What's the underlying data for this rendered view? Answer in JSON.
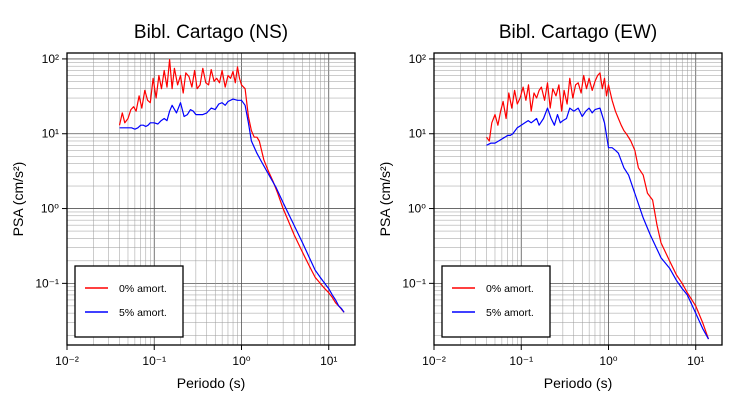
{
  "chart_data": [
    {
      "type": "line",
      "title": "Bibl. Cartago (NS)",
      "xlabel": "Periodo (s)",
      "ylabel": "PSA (cm/s²)",
      "xscale": "log",
      "yscale": "log",
      "xlim": [
        0.01,
        20
      ],
      "ylim": [
        0.015,
        120
      ],
      "xticks": [
        "10⁻²",
        "10⁻¹",
        "10⁰",
        "10¹"
      ],
      "xtick_values": [
        0.01,
        0.1,
        1,
        10
      ],
      "yticks": [
        "10⁻¹",
        "10⁰",
        "10¹",
        "10²"
      ],
      "ytick_values": [
        0.1,
        1,
        10,
        100
      ],
      "grid": true,
      "legend_position": "bottom-left",
      "series": [
        {
          "name": "0% amort.",
          "color": "#ff0000",
          "x": [
            0.04,
            0.043,
            0.046,
            0.05,
            0.054,
            0.058,
            0.062,
            0.067,
            0.072,
            0.078,
            0.084,
            0.09,
            0.097,
            0.105,
            0.113,
            0.121,
            0.13,
            0.14,
            0.15,
            0.16,
            0.17,
            0.185,
            0.2,
            0.215,
            0.23,
            0.25,
            0.27,
            0.29,
            0.31,
            0.335,
            0.36,
            0.39,
            0.42,
            0.45,
            0.485,
            0.52,
            0.56,
            0.6,
            0.65,
            0.7,
            0.75,
            0.8,
            0.85,
            0.9,
            0.95,
            1.0,
            1.1,
            1.2,
            1.3,
            1.4,
            1.5,
            1.6,
            1.8,
            2.0,
            2.3,
            2.6,
            3.0,
            3.5,
            4.0,
            5.0,
            6.0,
            7.0,
            8.0,
            9.0,
            10.0,
            11.0,
            12.0,
            13.0,
            14.0,
            15.0
          ],
          "y": [
            13,
            19,
            14,
            16,
            21,
            23,
            20,
            32,
            22,
            38,
            28,
            26,
            55,
            30,
            60,
            40,
            70,
            42,
            98,
            40,
            75,
            45,
            60,
            35,
            65,
            58,
            42,
            70,
            40,
            45,
            75,
            48,
            45,
            72,
            50,
            55,
            48,
            70,
            42,
            60,
            55,
            68,
            48,
            78,
            55,
            45,
            40,
            17,
            11,
            9,
            9,
            8,
            4.5,
            3.3,
            2.3,
            1.6,
            1.0,
            0.65,
            0.45,
            0.26,
            0.17,
            0.12,
            0.1,
            0.085,
            0.075,
            0.065,
            0.055,
            0.05,
            0.045,
            0.041
          ]
        },
        {
          "name": "5% amort.",
          "color": "#0000ff",
          "x": [
            0.04,
            0.045,
            0.05,
            0.055,
            0.06,
            0.065,
            0.07,
            0.075,
            0.08,
            0.085,
            0.09,
            0.1,
            0.11,
            0.12,
            0.13,
            0.14,
            0.15,
            0.16,
            0.18,
            0.2,
            0.22,
            0.24,
            0.26,
            0.28,
            0.3,
            0.33,
            0.36,
            0.4,
            0.45,
            0.5,
            0.55,
            0.6,
            0.65,
            0.7,
            0.8,
            0.9,
            1.0,
            1.1,
            1.2,
            1.3,
            1.5,
            1.7,
            2.0,
            2.5,
            3.0,
            4.0,
            5.0,
            6.0,
            7.0,
            8.0,
            9.0,
            10.0,
            11.0,
            12.0,
            13.0,
            14.0,
            15.0
          ],
          "y": [
            12,
            12,
            12,
            12,
            11.5,
            12,
            13,
            13,
            12.5,
            13,
            14,
            14,
            13.5,
            15,
            16,
            15,
            20,
            24,
            19,
            26,
            17,
            18,
            21,
            20,
            18,
            18,
            18,
            19,
            22,
            21,
            25,
            26,
            24,
            27,
            29,
            28,
            28,
            24,
            14,
            8,
            5.5,
            4.2,
            3.0,
            1.9,
            1.2,
            0.6,
            0.35,
            0.22,
            0.15,
            0.12,
            0.1,
            0.085,
            0.07,
            0.06,
            0.05,
            0.046,
            0.041
          ]
        }
      ]
    },
    {
      "type": "line",
      "title": "Bibl. Cartago (EW)",
      "xlabel": "Periodo (s)",
      "ylabel": "PSA (cm/s²)",
      "xscale": "log",
      "yscale": "log",
      "xlim": [
        0.01,
        20
      ],
      "ylim": [
        0.015,
        120
      ],
      "xticks": [
        "10⁻²",
        "10⁻¹",
        "10⁰",
        "10¹"
      ],
      "xtick_values": [
        0.01,
        0.1,
        1,
        10
      ],
      "yticks": [
        "10⁻¹",
        "10⁰",
        "10¹",
        "10²"
      ],
      "ytick_values": [
        0.1,
        1,
        10,
        100
      ],
      "grid": true,
      "legend_position": "bottom-left",
      "series": [
        {
          "name": "0% amort.",
          "color": "#ff0000",
          "x": [
            0.04,
            0.043,
            0.046,
            0.05,
            0.054,
            0.058,
            0.062,
            0.067,
            0.072,
            0.078,
            0.084,
            0.09,
            0.097,
            0.105,
            0.113,
            0.121,
            0.13,
            0.14,
            0.15,
            0.16,
            0.17,
            0.185,
            0.2,
            0.215,
            0.23,
            0.25,
            0.27,
            0.29,
            0.31,
            0.335,
            0.36,
            0.39,
            0.42,
            0.45,
            0.485,
            0.52,
            0.56,
            0.6,
            0.65,
            0.7,
            0.75,
            0.8,
            0.85,
            0.9,
            0.95,
            1.0,
            1.1,
            1.2,
            1.3,
            1.4,
            1.5,
            1.6,
            1.8,
            2.0,
            2.2,
            2.5,
            2.8,
            3.2,
            3.6,
            4.0,
            5.0,
            6.0,
            7.0,
            8.0,
            10.0,
            12.0,
            14.0
          ],
          "y": [
            9,
            8,
            14,
            18,
            13,
            20,
            27,
            16,
            35,
            22,
            38,
            25,
            30,
            42,
            28,
            45,
            20,
            35,
            30,
            38,
            42,
            28,
            48,
            22,
            40,
            32,
            45,
            20,
            38,
            25,
            55,
            30,
            45,
            48,
            35,
            60,
            40,
            55,
            38,
            50,
            60,
            65,
            40,
            55,
            32,
            45,
            28,
            20,
            16,
            13,
            11,
            10,
            8,
            6,
            3.5,
            2.8,
            1.6,
            1.3,
            0.6,
            0.35,
            0.2,
            0.13,
            0.1,
            0.075,
            0.05,
            0.03,
            0.018
          ]
        },
        {
          "name": "5% amort.",
          "color": "#0000ff",
          "x": [
            0.04,
            0.045,
            0.05,
            0.055,
            0.06,
            0.065,
            0.07,
            0.075,
            0.08,
            0.09,
            0.1,
            0.11,
            0.12,
            0.13,
            0.14,
            0.15,
            0.16,
            0.18,
            0.2,
            0.22,
            0.24,
            0.26,
            0.28,
            0.3,
            0.33,
            0.36,
            0.4,
            0.45,
            0.5,
            0.55,
            0.6,
            0.65,
            0.7,
            0.8,
            0.9,
            1.0,
            1.1,
            1.2,
            1.3,
            1.5,
            1.7,
            2.0,
            2.5,
            3.0,
            4.0,
            5.0,
            6.0,
            7.0,
            8.0,
            10.0,
            12.0,
            14.0
          ],
          "y": [
            7,
            7.5,
            7.5,
            8,
            8.5,
            9,
            9.5,
            9.5,
            10,
            12,
            13,
            14,
            15,
            14,
            15,
            16,
            13,
            16,
            22,
            16,
            13,
            18,
            14,
            15,
            16,
            22,
            20,
            22,
            17,
            20,
            22,
            19,
            21,
            22,
            14,
            6.5,
            6.5,
            6.0,
            5.5,
            3.5,
            2.8,
            1.6,
            0.75,
            0.45,
            0.22,
            0.16,
            0.11,
            0.085,
            0.07,
            0.04,
            0.025,
            0.018
          ]
        }
      ]
    }
  ]
}
